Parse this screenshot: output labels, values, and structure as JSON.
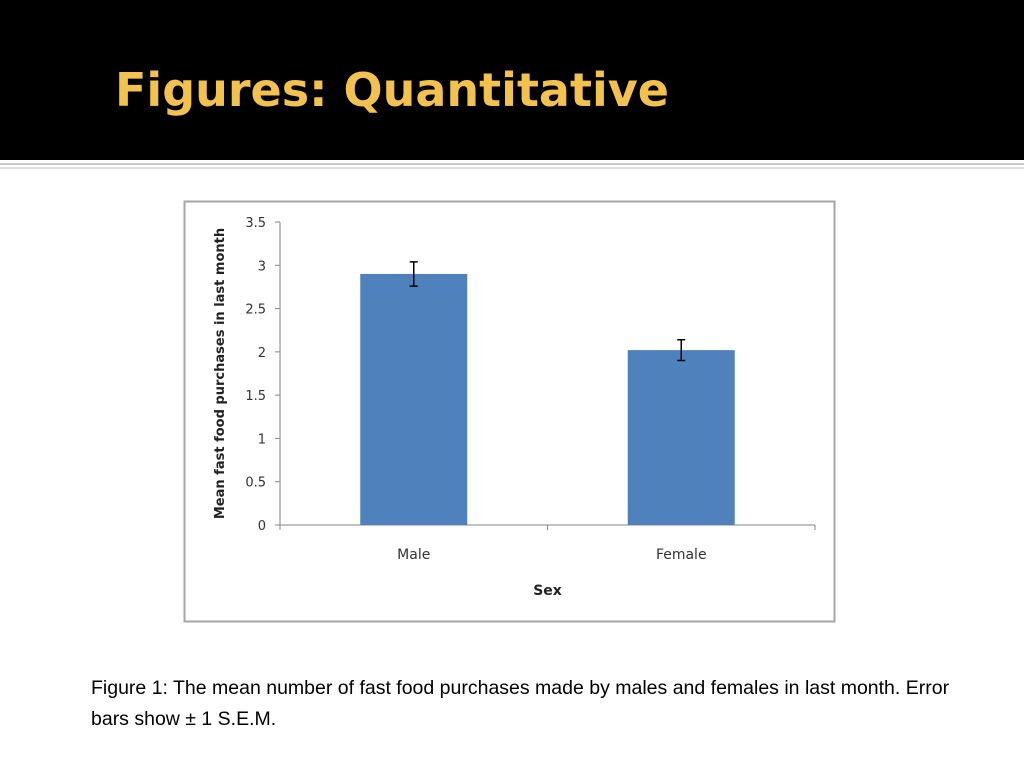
{
  "slide": {
    "title": "Figures: Quantitative",
    "caption": "Figure 1: The mean number of fast food purchases made by males and females in last month. Error bars show ± 1 S.E.M."
  },
  "chart_data": {
    "type": "bar",
    "x_label": "Sex",
    "y_label": "Mean fast food purchases in last month",
    "categories": [
      "Male",
      "Female"
    ],
    "values": [
      2.9,
      2.02
    ],
    "errors": [
      0.14,
      0.12
    ],
    "color": "#4f81bd",
    "ylim": [
      0,
      3.5
    ],
    "yticks": [
      0,
      0.5,
      1,
      1.5,
      2,
      2.5,
      3,
      3.5
    ],
    "grid": false
  }
}
